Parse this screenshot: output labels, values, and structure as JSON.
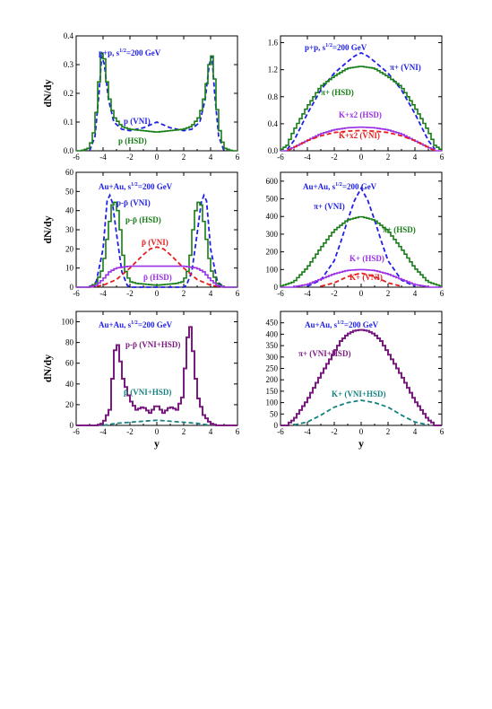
{
  "colors": {
    "blue": "#1f1fe6",
    "green": "#167d16",
    "red": "#e61e1e",
    "purple": "#9b30e6",
    "darkpurple": "#7b1a80",
    "teal": "#168080"
  },
  "chart_data": [
    {
      "type": "line",
      "title": "p+p, s^1/2=200 GeV",
      "xlabel": "",
      "ylabel": "dN/dy",
      "xlim": [
        -6,
        6
      ],
      "ylim": [
        0,
        0.4
      ],
      "yticks": [
        "0.0",
        "0.1",
        "0.2",
        "0.3",
        "0.4"
      ],
      "xticks": [
        "-6",
        "-4",
        "-2",
        "0",
        "2",
        "4",
        "6"
      ],
      "series": [
        {
          "name": "p (VNI)",
          "style": "dashed",
          "color": "blue",
          "x": [
            -5,
            -4.6,
            -4.3,
            -4.1,
            -3.9,
            -3.6,
            -3.2,
            -2.6,
            -2,
            -1,
            0,
            1,
            2,
            2.6,
            3.2,
            3.6,
            3.9,
            4.1,
            4.3,
            4.6,
            5
          ],
          "y": [
            0,
            0.05,
            0.2,
            0.33,
            0.3,
            0.18,
            0.1,
            0.075,
            0.07,
            0.08,
            0.1,
            0.08,
            0.07,
            0.075,
            0.1,
            0.18,
            0.3,
            0.33,
            0.2,
            0.05,
            0
          ]
        },
        {
          "name": "p (HSD)",
          "style": "hist",
          "color": "green",
          "x": [
            -5.6,
            -5,
            -4.6,
            -4.3,
            -4.1,
            -3.9,
            -3.6,
            -3.2,
            -2.6,
            -2,
            -1,
            0,
            1,
            2,
            2.6,
            3.2,
            3.6,
            3.9,
            4.1,
            4.3,
            4.6,
            5,
            5.6
          ],
          "y": [
            0,
            0.01,
            0.08,
            0.24,
            0.34,
            0.32,
            0.2,
            0.12,
            0.085,
            0.075,
            0.07,
            0.065,
            0.07,
            0.075,
            0.085,
            0.12,
            0.2,
            0.3,
            0.33,
            0.25,
            0.09,
            0.01,
            0
          ]
        }
      ],
      "labels": [
        "p (VNI)",
        "p (HSD)"
      ]
    },
    {
      "type": "line",
      "title": "p+p, s^1/2=200 GeV",
      "xlabel": "",
      "ylabel": "",
      "xlim": [
        -6,
        6
      ],
      "ylim": [
        0,
        1.7
      ],
      "yticks": [
        "0.0",
        "0.4",
        "0.8",
        "1.2",
        "1.6"
      ],
      "xticks": [
        "-6",
        "-4",
        "-2",
        "0",
        "2",
        "4",
        "6"
      ],
      "series": [
        {
          "name": "π+ (VNI)",
          "style": "dashed",
          "color": "blue",
          "x": [
            -5.5,
            -5,
            -4,
            -3,
            -2,
            -1,
            -0.5,
            0,
            0.5,
            1,
            2,
            3,
            4,
            5,
            5.5
          ],
          "y": [
            0.02,
            0.15,
            0.55,
            0.9,
            1.15,
            1.32,
            1.4,
            1.45,
            1.4,
            1.32,
            1.15,
            0.9,
            0.55,
            0.15,
            0.02
          ]
        },
        {
          "name": "π+ (HSD)",
          "style": "hist",
          "color": "green",
          "x": [
            -6,
            -5.5,
            -5,
            -4,
            -3,
            -2,
            -1,
            0,
            1,
            2,
            3,
            4,
            5,
            5.5,
            6
          ],
          "y": [
            0.01,
            0.08,
            0.3,
            0.65,
            0.95,
            1.1,
            1.22,
            1.25,
            1.22,
            1.1,
            0.95,
            0.65,
            0.3,
            0.08,
            0.01
          ]
        },
        {
          "name": "K+x2 (HSD)",
          "style": "hist",
          "color": "purple",
          "x": [
            -5.5,
            -5,
            -4,
            -3,
            -2,
            -1,
            0,
            1,
            2,
            3,
            4,
            5,
            5.5
          ],
          "y": [
            0.01,
            0.05,
            0.15,
            0.25,
            0.31,
            0.34,
            0.35,
            0.34,
            0.31,
            0.25,
            0.15,
            0.05,
            0.01
          ]
        },
        {
          "name": "K+x2 (VNI)",
          "style": "dashed",
          "color": "red",
          "x": [
            -5.5,
            -5,
            -4,
            -3,
            -2,
            -1,
            0,
            1,
            2,
            3,
            4,
            5,
            5.5
          ],
          "y": [
            0,
            0.05,
            0.15,
            0.22,
            0.27,
            0.29,
            0.3,
            0.29,
            0.27,
            0.22,
            0.15,
            0.05,
            0
          ]
        }
      ],
      "labels": [
        "π+ (VNI)",
        "π+ (HSD)",
        "K+x2 (HSD)",
        "K+x2 (VNI)"
      ]
    },
    {
      "type": "line",
      "title": "Au+Au, s^1/2=200 GeV",
      "xlabel": "",
      "ylabel": "dN/dy",
      "xlim": [
        -6,
        6
      ],
      "ylim": [
        0,
        60
      ],
      "yticks": [
        "0",
        "10",
        "20",
        "30",
        "40",
        "50",
        "60"
      ],
      "xticks": [
        "-6",
        "-4",
        "-2",
        "0",
        "2",
        "4",
        "6"
      ],
      "series": [
        {
          "name": "p-p̄ (VNI)",
          "style": "dashed",
          "color": "blue",
          "x": [
            -5,
            -4.5,
            -4,
            -3.7,
            -3.5,
            -3.3,
            -3,
            -2.6,
            -2.2,
            -2,
            2,
            2.2,
            2.6,
            3,
            3.3,
            3.5,
            3.7,
            4,
            4.5,
            5
          ],
          "y": [
            0,
            3,
            20,
            45,
            48,
            44,
            28,
            8,
            1,
            0,
            0,
            1,
            8,
            28,
            44,
            48,
            45,
            20,
            3,
            0
          ]
        },
        {
          "name": "p-p̄ (HSD)",
          "style": "hist",
          "color": "green",
          "x": [
            -5,
            -4.5,
            -4,
            -3.6,
            -3.3,
            -3,
            -2.7,
            -2.4,
            -2,
            -1.5,
            0,
            1.5,
            2,
            2.4,
            2.7,
            3,
            3.3,
            3.6,
            4,
            4.5,
            5
          ],
          "y": [
            0,
            2,
            10,
            30,
            43,
            45,
            30,
            10,
            3,
            2,
            1,
            2,
            3,
            10,
            30,
            45,
            43,
            30,
            10,
            2,
            0
          ]
        },
        {
          "name": "p̄ (VNI)",
          "style": "dashed",
          "color": "red",
          "x": [
            -5,
            -4,
            -3,
            -2,
            -1,
            -0.5,
            0,
            0.5,
            1,
            2,
            3,
            4,
            5
          ],
          "y": [
            0,
            1,
            4,
            10,
            17,
            20,
            21,
            20,
            17,
            10,
            4,
            1,
            0
          ]
        },
        {
          "name": "p̄ (HSD)",
          "style": "hist",
          "color": "purple",
          "x": [
            -5,
            -4.5,
            -4,
            -3.5,
            -3,
            -2,
            -1,
            0,
            1,
            2,
            3,
            3.5,
            4,
            4.5,
            5
          ],
          "y": [
            0,
            1,
            4,
            8,
            10,
            11,
            11,
            11,
            11,
            11,
            10,
            8,
            4,
            1,
            0
          ]
        }
      ],
      "labels": [
        "p-p̄ (VNI)",
        "p-p̄ (HSD)",
        "p̄ (VNI)",
        "p̄ (HSD)"
      ]
    },
    {
      "type": "line",
      "title": "Au+Au, s^1/2=200 GeV",
      "xlabel": "",
      "ylabel": "",
      "xlim": [
        -6,
        6
      ],
      "ylim": [
        0,
        650
      ],
      "yticks": [
        "0",
        "100",
        "200",
        "300",
        "400",
        "500",
        "600"
      ],
      "xticks": [
        "-6",
        "-4",
        "-2",
        "0",
        "2",
        "4",
        "6"
      ],
      "series": [
        {
          "name": "π+ (VNI)",
          "style": "dashed",
          "color": "blue",
          "x": [
            -4,
            -3,
            -2,
            -1.5,
            -1,
            -0.5,
            0,
            0.5,
            1,
            1.5,
            2,
            3,
            4
          ],
          "y": [
            5,
            40,
            150,
            260,
            380,
            490,
            560,
            490,
            380,
            260,
            150,
            40,
            5
          ]
        },
        {
          "name": "π+ (HSD)",
          "style": "hist",
          "color": "green",
          "x": [
            -6,
            -5,
            -4,
            -3,
            -2,
            -1,
            0,
            1,
            2,
            3,
            4,
            5,
            6
          ],
          "y": [
            5,
            30,
            110,
            220,
            320,
            380,
            400,
            380,
            320,
            220,
            110,
            30,
            5
          ]
        },
        {
          "name": "K+ (HSD)",
          "style": "hist",
          "color": "purple",
          "x": [
            -5,
            -4,
            -3,
            -2,
            -1,
            0,
            1,
            2,
            3,
            4,
            5
          ],
          "y": [
            2,
            15,
            45,
            75,
            95,
            100,
            95,
            75,
            45,
            15,
            2
          ]
        },
        {
          "name": "K+ (VNI)",
          "style": "dashed",
          "color": "red",
          "x": [
            -3,
            -2,
            -1,
            0,
            1,
            2,
            3
          ],
          "y": [
            5,
            25,
            60,
            80,
            60,
            25,
            5
          ]
        }
      ],
      "labels": [
        "π+ (VNI)",
        "π+ (HSD)",
        "K+ (HSD)",
        "K+ (VNI)"
      ]
    },
    {
      "type": "line",
      "title": "Au+Au, s^1/2=200 GeV",
      "xlabel": "y",
      "ylabel": "dN/dy",
      "xlim": [
        -6,
        6
      ],
      "ylim": [
        0,
        110
      ],
      "yticks": [
        "0",
        "20",
        "40",
        "60",
        "80",
        "100"
      ],
      "xticks": [
        "-6",
        "-4",
        "-2",
        "0",
        "2",
        "4",
        "6"
      ],
      "series": [
        {
          "name": "p-p̄ (VNI+HSD)",
          "style": "hist",
          "color": "darkpurple",
          "x": [
            -4.5,
            -4,
            -3.5,
            -3.2,
            -3,
            -2.8,
            -2.5,
            -2,
            -1.5,
            -1,
            -0.5,
            0,
            0.5,
            1,
            1.5,
            2,
            2.2,
            2.5,
            2.8,
            3,
            3.5,
            4,
            4.5
          ],
          "y": [
            0,
            2,
            15,
            60,
            85,
            70,
            45,
            25,
            15,
            18,
            12,
            20,
            12,
            18,
            15,
            30,
            80,
            95,
            60,
            30,
            10,
            2,
            0
          ]
        },
        {
          "name": "p̄ (VNI+HSD)",
          "style": "dashed",
          "color": "teal",
          "x": [
            -4,
            -3,
            -2,
            -1,
            0,
            1,
            2,
            3,
            4
          ],
          "y": [
            0,
            2,
            3,
            4,
            5,
            4,
            3,
            2,
            0
          ]
        }
      ],
      "labels": [
        "p-p̄ (VNI+HSD)",
        "p̄ (VNI+HSD)"
      ]
    },
    {
      "type": "line",
      "title": "Au+Au, s^1/2=200 GeV",
      "xlabel": "y",
      "ylabel": "",
      "xlim": [
        -6,
        6
      ],
      "ylim": [
        0,
        500
      ],
      "yticks": [
        "0",
        "50",
        "100",
        "150",
        "200",
        "250",
        "300",
        "350",
        "400",
        "450"
      ],
      "xticks": [
        "-6",
        "-4",
        "-2",
        "0",
        "2",
        "4",
        "6"
      ],
      "series": [
        {
          "name": "π+ (VNI+HSD)",
          "style": "hist",
          "color": "darkpurple",
          "x": [
            -5.5,
            -5,
            -4,
            -3,
            -2,
            -1.5,
            -1,
            -0.5,
            0,
            0.5,
            1,
            1.5,
            2,
            3,
            4,
            5,
            5.5
          ],
          "y": [
            5,
            25,
            110,
            220,
            320,
            370,
            400,
            415,
            420,
            415,
            400,
            370,
            320,
            220,
            110,
            25,
            5
          ]
        },
        {
          "name": "K+ (VNI+HSD)",
          "style": "dashed",
          "color": "teal",
          "x": [
            -5,
            -4,
            -3,
            -2,
            -1,
            0,
            1,
            2,
            3,
            4,
            5
          ],
          "y": [
            2,
            15,
            45,
            80,
            100,
            110,
            100,
            80,
            45,
            15,
            2
          ]
        }
      ],
      "labels": [
        "π+ (VNI+HSD)",
        "K+ (VNI+HSD)"
      ]
    }
  ]
}
